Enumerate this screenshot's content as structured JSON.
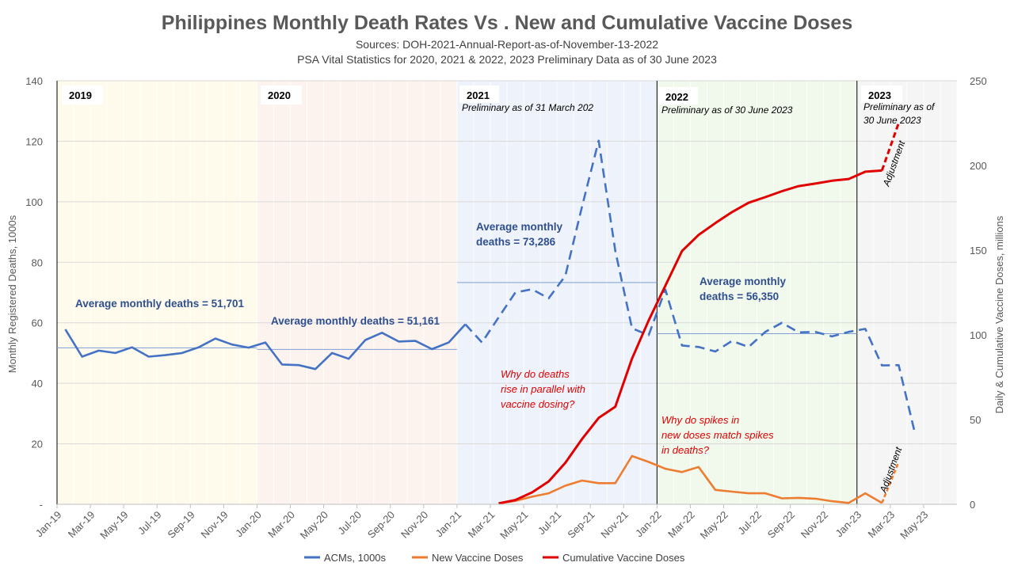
{
  "chart_data": {
    "type": "line",
    "title": "Philippines Monthly Death Rates Vs . New and Cumulative Vaccine Doses",
    "subtitles": [
      "Sources: DOH-2021-Annual-Report-as-of-November-13-2022",
      "PSA Vital Statistics for 2020, 2021 & 2022, 2023 Preliminary Data as of 30 June 2023"
    ],
    "ylabel": "Monthly Registered Deaths, 1000s",
    "y2label": "Daily & Cumulative Vaccine Doses, millions",
    "ylim": [
      0,
      140
    ],
    "y2lim": [
      0,
      250
    ],
    "y_ticks": [
      "-",
      "20",
      "40",
      "60",
      "80",
      "100",
      "120",
      "140"
    ],
    "y2_ticks": [
      "0",
      "50",
      "100",
      "150",
      "200",
      "250"
    ],
    "x_ticks": [
      "Jan-19",
      "Mar-19",
      "May-19",
      "Jul-19",
      "Sep-19",
      "Nov-19",
      "Jan-20",
      "Mar-20",
      "May-20",
      "Jul-20",
      "Sep-20",
      "Nov-20",
      "Jan-21",
      "Mar-21",
      "May-21",
      "Jul-21",
      "Sep-21",
      "Nov-21",
      "Jan-22",
      "Mar-22",
      "May-22",
      "Jul-22",
      "Sep-22",
      "Nov-22",
      "Jan-23",
      "Mar-23",
      "May-23"
    ],
    "grid": true,
    "legend_position": "bottom",
    "series": [
      {
        "name": "ACMs, 1000s",
        "color": "#4472c4",
        "axis": "left",
        "solid_until": "Jan-21",
        "x": [
          "Jan-19",
          "Feb-19",
          "Mar-19",
          "Apr-19",
          "May-19",
          "Jun-19",
          "Jul-19",
          "Aug-19",
          "Sep-19",
          "Oct-19",
          "Nov-19",
          "Dec-19",
          "Jan-20",
          "Feb-20",
          "Mar-20",
          "Apr-20",
          "May-20",
          "Jun-20",
          "Jul-20",
          "Aug-20",
          "Sep-20",
          "Oct-20",
          "Nov-20",
          "Dec-20",
          "Jan-21",
          "Feb-21",
          "Mar-21",
          "Apr-21",
          "May-21",
          "Jun-21",
          "Jul-21",
          "Aug-21",
          "Sep-21",
          "Oct-21",
          "Nov-21",
          "Dec-21",
          "Jan-22",
          "Feb-22",
          "Mar-22",
          "Apr-22",
          "May-22",
          "Jun-22",
          "Jul-22",
          "Aug-22",
          "Sep-22",
          "Oct-22",
          "Nov-22",
          "Dec-22",
          "Jan-23",
          "Feb-23",
          "Mar-23",
          "Apr-23"
        ],
        "values": [
          57.8,
          48.8,
          50.8,
          50.0,
          51.9,
          48.8,
          49.3,
          50.0,
          51.9,
          54.8,
          52.8,
          51.8,
          53.5,
          46.2,
          46.0,
          44.7,
          50.0,
          48.1,
          54.3,
          56.7,
          53.8,
          54.0,
          51.3,
          53.5,
          59.5,
          53.5,
          61.8,
          70.0,
          71.1,
          68.1,
          75.5,
          98.4,
          120.2,
          83.8,
          58.2,
          55.9,
          71.0,
          52.5,
          52.0,
          50.5,
          54.0,
          52.0,
          57.0,
          60.0,
          56.8,
          57.0,
          55.5,
          57.0,
          58.0,
          45.9,
          46.0,
          23.0
        ]
      },
      {
        "name": "New Vaccine Doses",
        "color": "#ed7d31",
        "axis": "right",
        "x": [
          "Mar-21",
          "Apr-21",
          "May-21",
          "Jun-21",
          "Jul-21",
          "Aug-21",
          "Sep-21",
          "Oct-21",
          "Nov-21",
          "Dec-21",
          "Jan-22",
          "Feb-22",
          "Mar-22",
          "Apr-22",
          "May-22",
          "Jun-22",
          "Jul-22",
          "Aug-22",
          "Sep-22",
          "Oct-22",
          "Nov-22",
          "Dec-22",
          "Jan-23",
          "Feb-23"
        ],
        "values": [
          0.5,
          2,
          4.5,
          6.5,
          11,
          14,
          12.5,
          12.5,
          28.5,
          25,
          21,
          19,
          22,
          8.5,
          7.5,
          6.5,
          6.5,
          3.5,
          3.8,
          3.3,
          1.8,
          0.8,
          6.5,
          0.8
        ],
        "adjustment": {
          "x": [
            "Feb-23",
            "Mar-23"
          ],
          "values": [
            0.8,
            25
          ]
        }
      },
      {
        "name": "Cumulative Vaccine Doses",
        "color": "#e00000",
        "axis": "right",
        "x": [
          "Mar-21",
          "Apr-21",
          "May-21",
          "Jun-21",
          "Jul-21",
          "Aug-21",
          "Sep-21",
          "Oct-21",
          "Nov-21",
          "Dec-21",
          "Jan-22",
          "Feb-22",
          "Mar-22",
          "Apr-22",
          "May-22",
          "Jun-22",
          "Jul-22",
          "Aug-22",
          "Sep-22",
          "Oct-22",
          "Nov-22",
          "Dec-22",
          "Jan-23",
          "Feb-23"
        ],
        "values": [
          0.5,
          2.5,
          7,
          13.5,
          24.5,
          38.5,
          51,
          57.6,
          86,
          108.5,
          129,
          149.5,
          159,
          166,
          172.5,
          178,
          181.3,
          184.8,
          187.8,
          189.3,
          191,
          192,
          196.3,
          197
        ],
        "adjustment": {
          "x": [
            "Feb-23",
            "Mar-23"
          ],
          "values": [
            197,
            225
          ]
        }
      }
    ],
    "periods": [
      {
        "label": "2019",
        "from": "Jan-19",
        "to": "Jan-20",
        "color": "#fffbec"
      },
      {
        "label": "2020",
        "from": "Jan-20",
        "to": "Jan-21",
        "color": "#fdf3ee"
      },
      {
        "label": "2021",
        "sublabel": "Preliminary as of 31 March 202",
        "from": "Jan-21",
        "to": "Jan-22",
        "color": "#eef2fa"
      },
      {
        "label": "2022",
        "sublabel": "Preliminary as of 30 June 2023",
        "from": "Jan-22",
        "to": "Jan-23",
        "color": "#f1f8ec"
      },
      {
        "label": "2023",
        "sublabel": "Preliminary as of\n30 June 2023",
        "from": "Jan-23",
        "to": "Jul-23",
        "color": "#f5f5f5"
      }
    ],
    "averages": [
      {
        "text": "Average monthly deaths = 51,701",
        "value": 51.7,
        "from": "Jan-19",
        "to": "Jan-20"
      },
      {
        "text": "Average monthly deaths = 51,161",
        "value": 51.2,
        "from": "Jan-20",
        "to": "Jan-21"
      },
      {
        "text": "Average monthly\ndeaths = 73,286",
        "value": 73.3,
        "from": "Jan-21",
        "to": "Jan-22"
      },
      {
        "text": "Average monthly\ndeaths  = 56,350",
        "value": 56.4,
        "from": "Jan-22",
        "to": "Jan-23"
      }
    ],
    "annotations": [
      {
        "text": "Why do deaths\nrise in parallel with\nvaccine dosing?",
        "color": "#e00000"
      },
      {
        "text": "Why do spikes in\nnew doses match spikes\nin deaths?",
        "color": "#e00000"
      },
      {
        "text": "Adjustment",
        "color": "#000000"
      },
      {
        "text": "Adjustment",
        "color": "#000000"
      }
    ]
  }
}
